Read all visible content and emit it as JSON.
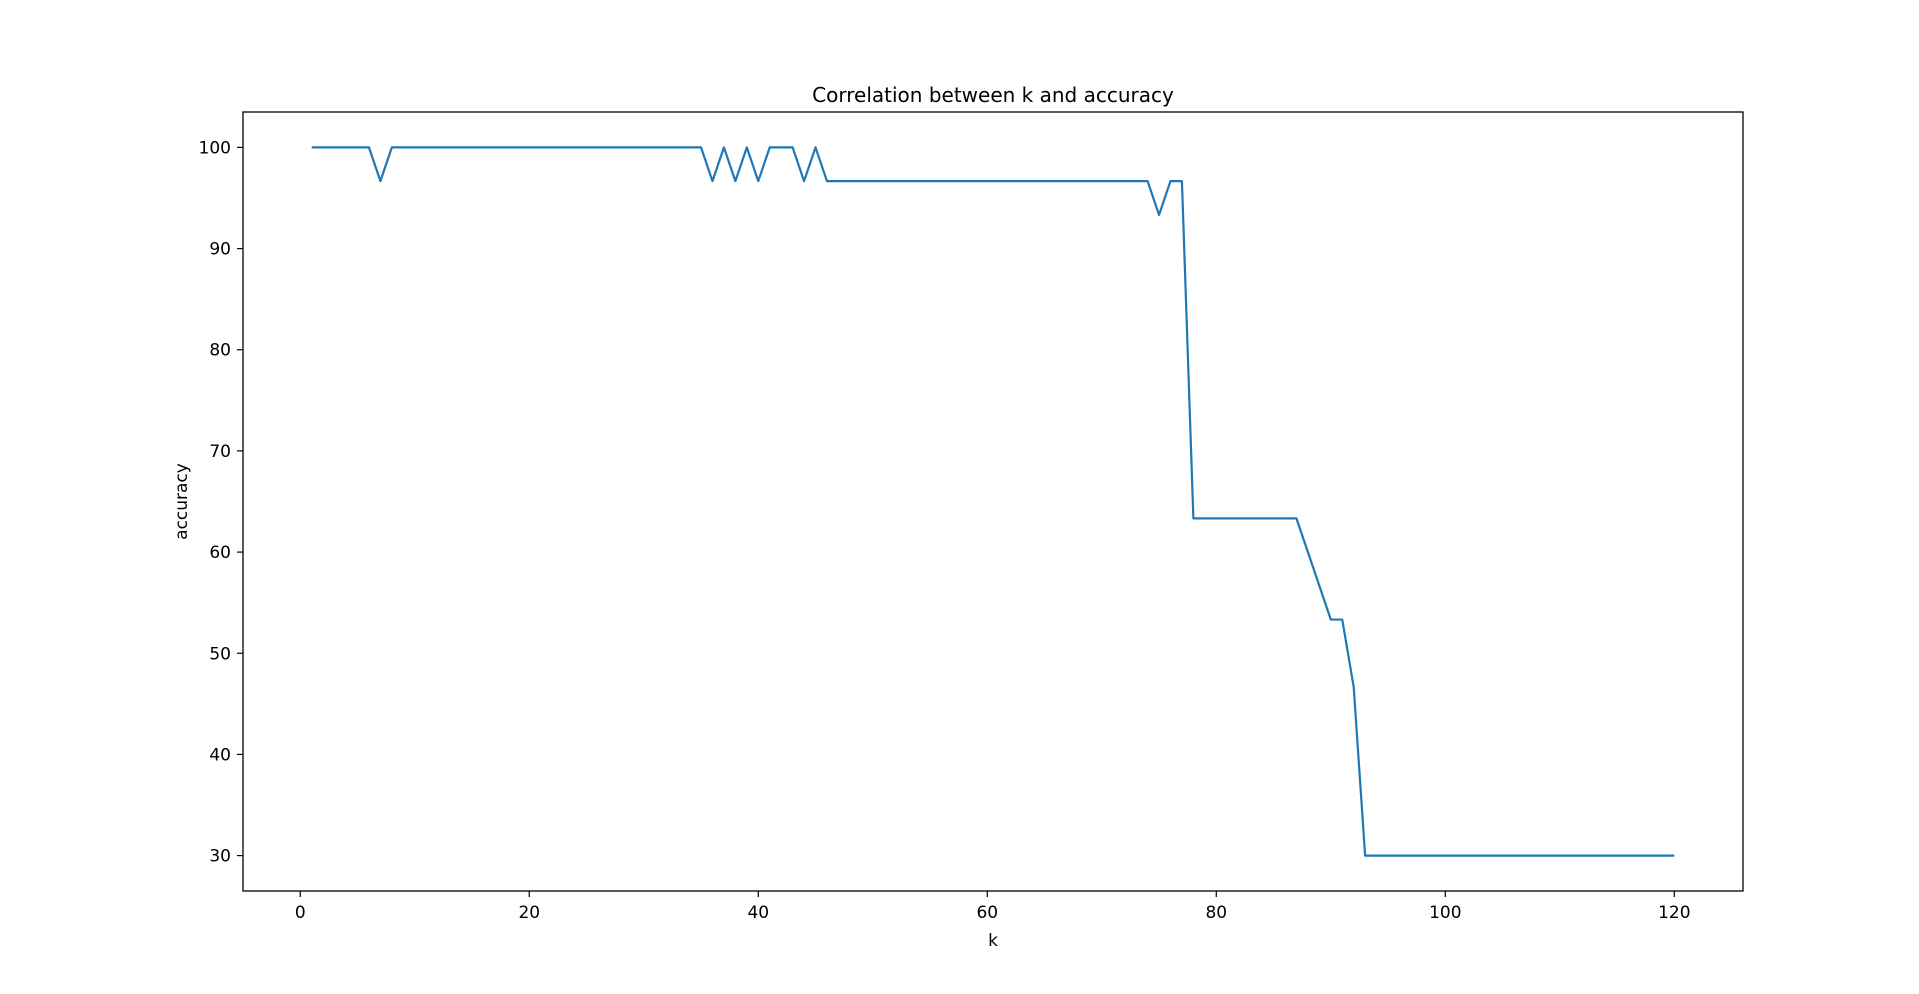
{
  "chart_data": {
    "type": "line",
    "title": "Correlation between k and accuracy",
    "xlabel": "k",
    "ylabel": "accuracy",
    "xlim": [
      -5,
      126
    ],
    "ylim": [
      26.5,
      103.5
    ],
    "xticks": [
      0,
      20,
      40,
      60,
      80,
      100,
      120
    ],
    "yticks": [
      30,
      40,
      50,
      60,
      70,
      80,
      90,
      100
    ],
    "grid": false,
    "legend": "none",
    "series": [
      {
        "color": "#1f77b4",
        "x": [
          1,
          6,
          7,
          8,
          35,
          36,
          37,
          38,
          39,
          40,
          41,
          43,
          44,
          45,
          46,
          74,
          75,
          76,
          77,
          78,
          87,
          89,
          90,
          91,
          92,
          93,
          120
        ],
        "y": [
          100,
          100,
          96.67,
          100,
          100,
          96.67,
          100,
          96.67,
          100,
          96.67,
          100,
          100,
          96.67,
          100,
          96.67,
          96.67,
          93.33,
          96.67,
          96.67,
          63.33,
          63.33,
          56.67,
          53.33,
          53.33,
          46.67,
          30,
          30
        ]
      }
    ]
  }
}
